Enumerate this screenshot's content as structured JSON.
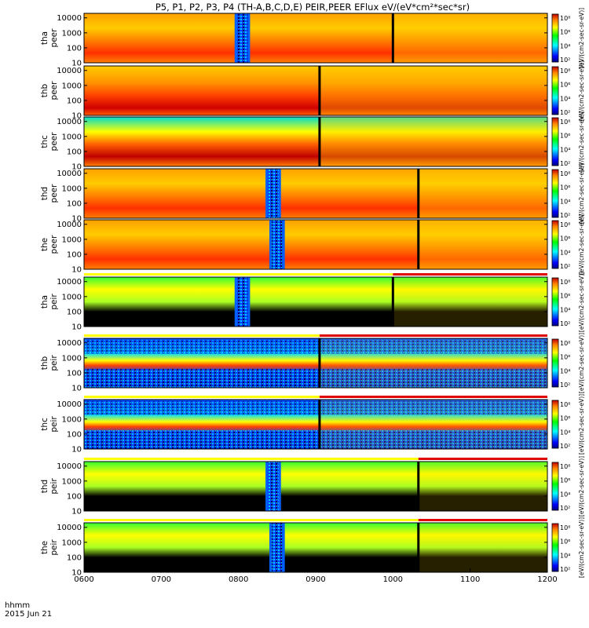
{
  "title": "P5, P1, P2, P3, P4 (TH-A,B,C,D,E) PEIR,PEER EFlux eV/(eV*cm²*sec*sr)",
  "chart_data": {
    "type": "heatmap",
    "x_axis": {
      "ticks": [
        "0600",
        "0700",
        "0800",
        "0900",
        "1000",
        "1100",
        "1200"
      ],
      "range_hours": [
        6,
        12
      ],
      "label_top": "hhmm",
      "label_bottom": "2015 Jun 21"
    },
    "y_axis": {
      "scale": "log",
      "range": [
        10,
        20000
      ],
      "ticks": [
        "10",
        "100",
        "1000",
        "10000"
      ]
    },
    "colorbar_ticks": [
      "10⁸",
      "10⁶",
      "10⁴",
      "10²"
    ],
    "colorbar_label": "[eV/(cm2-sec-sr-eV)]",
    "panels": [
      {
        "label1": "tha",
        "label2": "peer",
        "species": "electron",
        "gap_start": 7.95,
        "gap_end": 8.15,
        "mode_change": 10.0,
        "data_end": 12
      },
      {
        "label1": "thb",
        "label2": "peer",
        "species": "electron",
        "gap_start": null,
        "gap_end": null,
        "mode_change": 9.05,
        "data_end": 12
      },
      {
        "label1": "thc",
        "label2": "peer",
        "species": "electron",
        "gap_start": null,
        "gap_end": null,
        "mode_change": 9.05,
        "data_end": 12
      },
      {
        "label1": "thd",
        "label2": "peer",
        "species": "electron",
        "gap_start": 8.35,
        "gap_end": 8.55,
        "mode_change": 10.33,
        "data_end": 12
      },
      {
        "label1": "the",
        "label2": "peer",
        "species": "electron",
        "gap_start": 8.4,
        "gap_end": 8.6,
        "mode_change": 10.33,
        "data_end": 12
      },
      {
        "label1": "tha",
        "label2": "peir",
        "species": "ion",
        "gap_start": 7.95,
        "gap_end": 8.15,
        "mode_change": 10.0,
        "data_end": 12
      },
      {
        "label1": "thb",
        "label2": "peir",
        "species": "ion",
        "gap_start": null,
        "gap_end": null,
        "mode_change": 9.05,
        "data_end": 12
      },
      {
        "label1": "thc",
        "label2": "peir",
        "species": "ion",
        "gap_start": null,
        "gap_end": null,
        "mode_change": 9.05,
        "data_end": 12
      },
      {
        "label1": "thd",
        "label2": "peir",
        "species": "ion",
        "gap_start": 8.35,
        "gap_end": 8.55,
        "mode_change": 10.33,
        "data_end": 12
      },
      {
        "label1": "the",
        "label2": "peir",
        "species": "ion",
        "gap_start": 8.4,
        "gap_end": 8.6,
        "mode_change": 10.33,
        "data_end": 12
      }
    ],
    "mode_bars": [
      {
        "after_panel": 5,
        "red_start": 10.0
      },
      {
        "after_panel": 6,
        "red_start": 9.05
      },
      {
        "after_panel": 7,
        "red_start": 9.05
      },
      {
        "after_panel": 8,
        "red_start": 10.33
      },
      {
        "after_panel": 9,
        "red_start": 10.33
      }
    ]
  },
  "colors": {
    "background": "#ffffff",
    "axis": "#000000",
    "mode_slow": "#ffff00",
    "mode_fast": "#e00000"
  }
}
